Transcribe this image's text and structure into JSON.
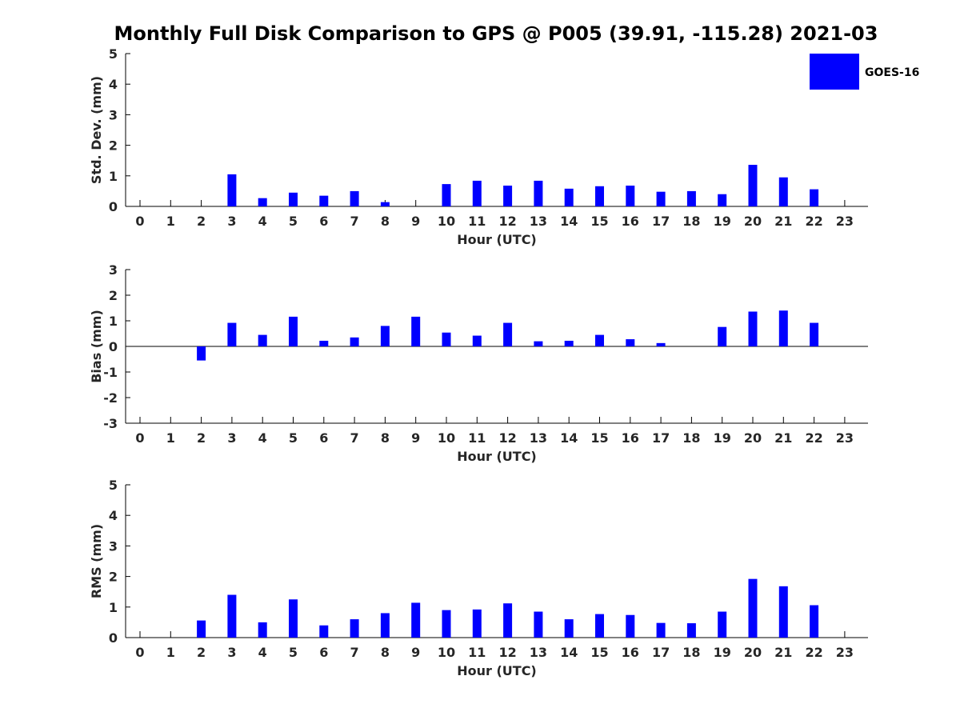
{
  "title": "Monthly Full Disk Comparison to GPS @ P005 (39.91, -115.28) 2021-03",
  "legend": {
    "label": "GOES-16",
    "color": "#0000ff",
    "position": "top-right"
  },
  "bar_color": "#0000ff",
  "chart_data": [
    {
      "type": "bar",
      "ylabel": "Std. Dev. (mm)",
      "xlabel": "Hour (UTC)",
      "ylim": [
        0,
        5
      ],
      "yticks": [
        0,
        1,
        2,
        3,
        4,
        5
      ],
      "categories": [
        "0",
        "1",
        "2",
        "3",
        "4",
        "5",
        "6",
        "7",
        "8",
        "9",
        "10",
        "11",
        "12",
        "13",
        "14",
        "15",
        "16",
        "17",
        "18",
        "19",
        "20",
        "21",
        "22",
        "23"
      ],
      "series": [
        {
          "name": "GOES-16",
          "values": [
            null,
            null,
            null,
            1.05,
            0.27,
            0.45,
            0.35,
            0.5,
            0.14,
            null,
            0.73,
            0.84,
            0.68,
            0.84,
            0.58,
            0.66,
            0.68,
            0.48,
            0.5,
            0.4,
            1.36,
            0.95,
            0.56,
            null
          ]
        }
      ]
    },
    {
      "type": "bar",
      "ylabel": "Bias (mm)",
      "xlabel": "Hour (UTC)",
      "ylim": [
        -3,
        3
      ],
      "yticks": [
        -3,
        -2,
        -1,
        0,
        1,
        2,
        3
      ],
      "zero_line": true,
      "categories": [
        "0",
        "1",
        "2",
        "3",
        "4",
        "5",
        "6",
        "7",
        "8",
        "9",
        "10",
        "11",
        "12",
        "13",
        "14",
        "15",
        "16",
        "17",
        "18",
        "19",
        "20",
        "21",
        "22",
        "23"
      ],
      "series": [
        {
          "name": "GOES-16",
          "values": [
            null,
            null,
            -0.55,
            0.92,
            0.45,
            1.16,
            0.22,
            0.35,
            0.8,
            1.16,
            0.54,
            0.42,
            0.92,
            0.2,
            0.22,
            0.45,
            0.28,
            0.13,
            null,
            0.76,
            1.36,
            1.4,
            0.92,
            null
          ]
        }
      ]
    },
    {
      "type": "bar",
      "ylabel": "RMS (mm)",
      "xlabel": "Hour (UTC)",
      "ylim": [
        0,
        5
      ],
      "yticks": [
        0,
        1,
        2,
        3,
        4,
        5
      ],
      "categories": [
        "0",
        "1",
        "2",
        "3",
        "4",
        "5",
        "6",
        "7",
        "8",
        "9",
        "10",
        "11",
        "12",
        "13",
        "14",
        "15",
        "16",
        "17",
        "18",
        "19",
        "20",
        "21",
        "22",
        "23"
      ],
      "series": [
        {
          "name": "GOES-16",
          "values": [
            null,
            null,
            0.56,
            1.4,
            0.5,
            1.25,
            0.4,
            0.6,
            0.8,
            1.14,
            0.9,
            0.92,
            1.12,
            0.85,
            0.6,
            0.77,
            0.74,
            0.48,
            0.47,
            0.85,
            1.92,
            1.68,
            1.06,
            null
          ]
        }
      ]
    }
  ]
}
